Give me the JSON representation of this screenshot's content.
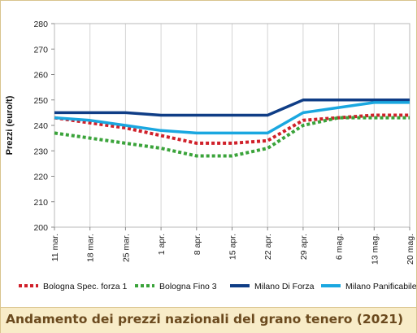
{
  "caption": "Andamento dei prezzi nazionali del grano tenero (2021)",
  "chart_data": {
    "type": "line",
    "title": "",
    "xlabel": "",
    "ylabel": "Prezzi (euro/t)",
    "ylim": [
      200,
      280
    ],
    "yticks": [
      200,
      210,
      220,
      230,
      240,
      250,
      260,
      270,
      280
    ],
    "grid": "vertical",
    "legend_position": "bottom",
    "categories": [
      "11 mar.",
      "18 mar.",
      "25 mar.",
      "1 apr.",
      "8 apr.",
      "15 apr.",
      "22 apr.",
      "29 apr.",
      "6 mag.",
      "13 mag.",
      "20 mag."
    ],
    "series": [
      {
        "name": "Bologna Spec. forza 1",
        "color": "#d0202a",
        "style": "dotted",
        "values": [
          243,
          241,
          239,
          236,
          233,
          233,
          234,
          242,
          243,
          244,
          244
        ]
      },
      {
        "name": "Bologna Fino 3",
        "color": "#3aa33a",
        "style": "dotted",
        "values": [
          237,
          235,
          233,
          231,
          228,
          228,
          231,
          240,
          243,
          243,
          243
        ]
      },
      {
        "name": "Milano Di Forza",
        "color": "#0f3d86",
        "style": "solid",
        "values": [
          245,
          245,
          245,
          244,
          244,
          244,
          244,
          250,
          250,
          250,
          250
        ]
      },
      {
        "name": "Milano Panificabile",
        "color": "#1aa7e0",
        "style": "solid",
        "values": [
          243,
          242,
          240,
          238,
          237,
          237,
          237,
          245,
          247,
          249,
          249
        ]
      }
    ]
  }
}
